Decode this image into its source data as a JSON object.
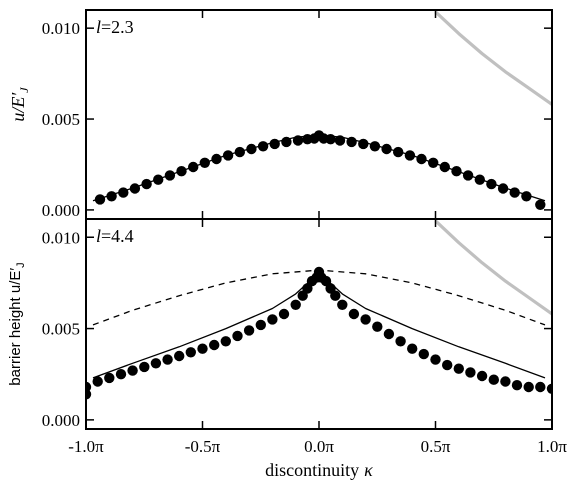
{
  "chart_data": {
    "type": "scatter",
    "xlabel": "discontinuity",
    "xlabel_symbol": "κ",
    "xlim": [
      -1.0,
      1.0
    ],
    "x_unit": "π",
    "x_ticks": [
      -1.0,
      -0.5,
      0.0,
      0.5,
      1.0
    ],
    "x_tick_labels": [
      "-1.0π",
      "-0.5π",
      "0.0π",
      "0.5π",
      "1.0π"
    ],
    "panels": [
      {
        "label": "l=2.3",
        "label_var": "l",
        "label_value": "=2.3",
        "ylabel": "u/E′",
        "ylabel_sub": "J",
        "ylim": [
          -0.0005,
          0.011
        ],
        "y_ticks": [
          0.0,
          0.005,
          0.01
        ],
        "y_tick_labels": [
          "0.000",
          "0.005",
          "0.010"
        ],
        "series": [
          {
            "kind": "points",
            "color": "#000000",
            "x": [
              -0.94,
              -0.89,
              -0.84,
              -0.79,
              -0.74,
              -0.69,
              -0.64,
              -0.59,
              -0.54,
              -0.49,
              -0.44,
              -0.39,
              -0.34,
              -0.29,
              -0.24,
              -0.19,
              -0.14,
              -0.09,
              -0.05,
              -0.02,
              0.0,
              0.02,
              0.05,
              0.09,
              0.14,
              0.19,
              0.24,
              0.29,
              0.34,
              0.39,
              0.44,
              0.49,
              0.54,
              0.59,
              0.64,
              0.69,
              0.74,
              0.79,
              0.84,
              0.89,
              0.95
            ],
            "y": [
              0.00058,
              0.00075,
              0.00095,
              0.00118,
              0.00142,
              0.00166,
              0.0019,
              0.00213,
              0.00236,
              0.00259,
              0.0028,
              0.003,
              0.00318,
              0.00335,
              0.0035,
              0.00363,
              0.00374,
              0.00382,
              0.00389,
              0.00393,
              0.0041,
              0.00393,
              0.00389,
              0.00382,
              0.00374,
              0.00363,
              0.0035,
              0.00335,
              0.00318,
              0.003,
              0.0028,
              0.00259,
              0.00236,
              0.00213,
              0.0019,
              0.00166,
              0.00142,
              0.00118,
              0.00095,
              0.00075,
              0.00028
            ]
          },
          {
            "kind": "solid-line",
            "color": "#000000",
            "x": [
              -0.97,
              -0.8,
              -0.6,
              -0.4,
              -0.2,
              -0.1,
              0.0,
              0.1,
              0.2,
              0.4,
              0.6,
              0.8,
              0.97
            ],
            "y": [
              0.0005,
              0.0012,
              0.0021,
              0.003,
              0.0037,
              0.004,
              0.0041,
              0.004,
              0.0037,
              0.003,
              0.0021,
              0.0012,
              0.0005
            ]
          },
          {
            "kind": "gray-line",
            "color": "#c0c0c0",
            "x": [
              0.5,
              0.6,
              0.7,
              0.8,
              0.9,
              1.0
            ],
            "y": [
              0.0109,
              0.0097,
              0.0086,
              0.0076,
              0.0067,
              0.0058
            ]
          }
        ]
      },
      {
        "label": "l=4.4",
        "label_var": "l",
        "label_value": "=4.4",
        "ylabel": "barrier height u/E′",
        "ylabel_sub": "J",
        "ylim": [
          -0.0005,
          0.011
        ],
        "y_ticks": [
          0.0,
          0.005,
          0.01
        ],
        "y_tick_labels": [
          "0.000",
          "0.005",
          "0.010"
        ],
        "series": [
          {
            "kind": "points",
            "color": "#000000",
            "x": [
              -1.0,
              -1.0,
              -0.95,
              -0.9,
              -0.85,
              -0.8,
              -0.75,
              -0.7,
              -0.65,
              -0.6,
              -0.55,
              -0.5,
              -0.45,
              -0.4,
              -0.35,
              -0.3,
              -0.25,
              -0.2,
              -0.15,
              -0.1,
              -0.07,
              -0.05,
              -0.03,
              -0.01,
              0.0,
              0.01,
              0.03,
              0.05,
              0.07,
              0.1,
              0.15,
              0.2,
              0.25,
              0.3,
              0.35,
              0.4,
              0.45,
              0.5,
              0.55,
              0.6,
              0.65,
              0.7,
              0.75,
              0.8,
              0.85,
              0.9,
              0.95,
              1.0
            ],
            "y": [
              0.0014,
              0.0018,
              0.0021,
              0.0023,
              0.0025,
              0.0027,
              0.0029,
              0.0031,
              0.0033,
              0.0035,
              0.0037,
              0.0039,
              0.0041,
              0.0043,
              0.0046,
              0.0049,
              0.0052,
              0.0055,
              0.0058,
              0.0063,
              0.0068,
              0.0072,
              0.0076,
              0.0078,
              0.0081,
              0.0078,
              0.0076,
              0.0072,
              0.0068,
              0.0063,
              0.0058,
              0.0055,
              0.0051,
              0.0047,
              0.0043,
              0.0039,
              0.0036,
              0.0033,
              0.003,
              0.0028,
              0.0026,
              0.0024,
              0.0022,
              0.0021,
              0.0019,
              0.0018,
              0.0018,
              0.0017
            ]
          },
          {
            "kind": "solid-line",
            "color": "#000000",
            "x": [
              -0.97,
              -0.8,
              -0.6,
              -0.4,
              -0.2,
              -0.1,
              -0.04,
              0.0,
              0.04,
              0.1,
              0.2,
              0.4,
              0.6,
              0.8,
              0.97
            ],
            "y": [
              0.0023,
              0.0031,
              0.004,
              0.005,
              0.0061,
              0.0069,
              0.0076,
              0.0081,
              0.0076,
              0.0069,
              0.0061,
              0.005,
              0.004,
              0.0031,
              0.0023
            ]
          },
          {
            "kind": "dashed-line",
            "color": "#000000",
            "x": [
              -0.97,
              -0.8,
              -0.6,
              -0.4,
              -0.2,
              0.0,
              0.2,
              0.4,
              0.6,
              0.8,
              0.97
            ],
            "y": [
              0.0052,
              0.006,
              0.0068,
              0.0075,
              0.008,
              0.0082,
              0.008,
              0.0075,
              0.0068,
              0.006,
              0.0052
            ]
          },
          {
            "kind": "gray-line",
            "color": "#c0c0c0",
            "x": [
              0.5,
              0.6,
              0.7,
              0.8,
              0.9,
              1.0
            ],
            "y": [
              0.0109,
              0.0097,
              0.0086,
              0.0076,
              0.0067,
              0.0058
            ]
          }
        ]
      }
    ],
    "grid": false
  }
}
